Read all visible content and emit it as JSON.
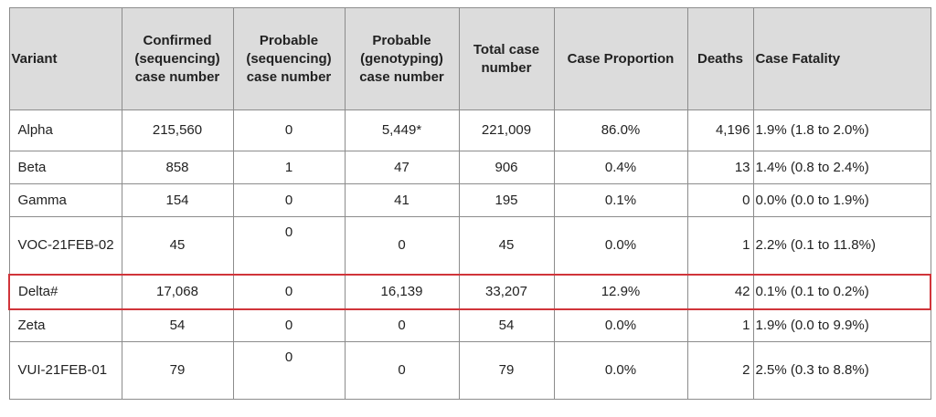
{
  "headers": {
    "variant": "Variant",
    "confirmed": "Confirmed (sequencing) case number",
    "probable_seq": "Probable (sequencing) case number",
    "probable_geno": "Probable (genotyping) case number",
    "total": "Total case number",
    "proportion": "Case Proportion",
    "deaths": "Deaths",
    "fatality": "Case Fatality"
  },
  "rows": [
    {
      "variant": "Alpha",
      "confirmed": "215,560",
      "probable_seq": "0",
      "probable_geno": "5,449*",
      "total": "221,009",
      "proportion": "86.0%",
      "deaths": "4,196",
      "fatality": "1.9% (1.8 to 2.0%)"
    },
    {
      "variant": "Beta",
      "confirmed": "858",
      "probable_seq": "1",
      "probable_geno": "47",
      "total": "906",
      "proportion": "0.4%",
      "deaths": "13",
      "fatality": "1.4% (0.8 to 2.4%)"
    },
    {
      "variant": "Gamma",
      "confirmed": "154",
      "probable_seq": "0",
      "probable_geno": "41",
      "total": "195",
      "proportion": "0.1%",
      "deaths": "0",
      "fatality": "0.0% (0.0 to 1.9%)"
    },
    {
      "variant": "VOC-21FEB-02",
      "confirmed": "45",
      "probable_seq": "0",
      "probable_geno": "0",
      "total": "45",
      "proportion": "0.0%",
      "deaths": "1",
      "fatality": "2.2% (0.1 to 11.8%)"
    },
    {
      "variant": "Delta#",
      "confirmed": "17,068",
      "probable_seq": "0",
      "probable_geno": "16,139",
      "total": "33,207",
      "proportion": "12.9%",
      "deaths": "42",
      "fatality": "0.1% (0.1 to 0.2%)",
      "highlight": true
    },
    {
      "variant": "Zeta",
      "confirmed": "54",
      "probable_seq": "0",
      "probable_geno": "0",
      "total": "54",
      "proportion": "0.0%",
      "deaths": "1",
      "fatality": "1.9% (0.0 to 9.9%)"
    },
    {
      "variant": "VUI-21FEB-01",
      "confirmed": "79",
      "probable_seq": "0",
      "probable_geno": "0",
      "total": "79",
      "proportion": "0.0%",
      "deaths": "2",
      "fatality": "2.5% (0.3 to 8.8%)"
    }
  ],
  "colors": {
    "highlight": "#d0343a",
    "header_bg": "#dcdcdc",
    "border": "#8c8c8c"
  }
}
